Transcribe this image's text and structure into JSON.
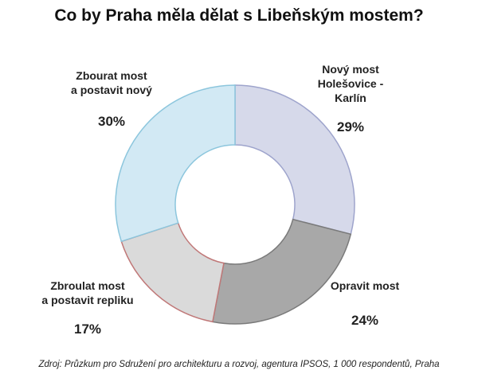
{
  "chart_data": {
    "type": "donut",
    "title": "Co by Praha měla dělat s Libeňským mostem?",
    "categories": [
      "Nový most\nHolešovice -\nKarlín",
      "Opravit most",
      "Zbroulat most\na postavit repliku",
      "Zbourat most\na postavit nový"
    ],
    "values": [
      29,
      24,
      17,
      30
    ],
    "value_labels": [
      "29%",
      "24%",
      "17%",
      "30%"
    ],
    "colors": [
      "#d6d9ea",
      "#a8a8a8",
      "#dadada",
      "#d2e9f4"
    ],
    "edge_colors": [
      "#9ea4cc",
      "#7a7a7a",
      "#c07878",
      "#8cc6dd"
    ],
    "source": "Zdroj: Průzkum pro Sdružení pro architekturu a rozvoj, agentura IPSOS, 1 000 respondentů, Praha"
  }
}
